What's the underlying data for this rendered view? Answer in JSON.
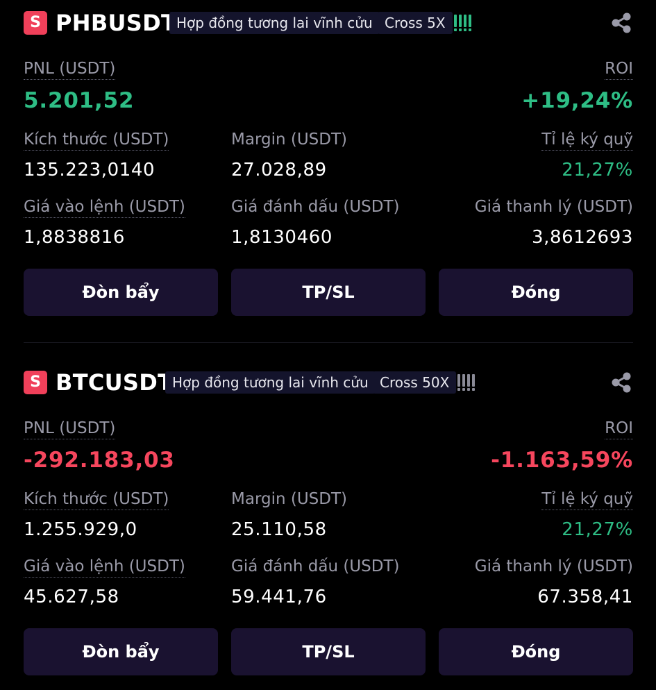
{
  "positions": [
    {
      "badge": "S",
      "symbol": "PHBUSDT",
      "contract_type": "Hợp đồng tương lai vĩnh cửu",
      "margin_mode": "Cross 5X",
      "pnl_label": "PNL (USDT)",
      "pnl_value": "5.201,52",
      "roi_label": "ROI",
      "roi_value": "+19,24%",
      "size_label": "Kích thước (USDT)",
      "size_value": "135.223,0140",
      "margin_label": "Margin (USDT)",
      "margin_value": "27.028,89",
      "margin_ratio_label": "Tỉ lệ ký quỹ",
      "margin_ratio_value": "21,27%",
      "entry_label": "Giá vào lệnh (USDT)",
      "entry_value": "1,8838816",
      "mark_label": "Giá đánh dấu (USDT)",
      "mark_value": "1,8130460",
      "liq_label": "Giá thanh lý (USDT)",
      "liq_value": "3,8612693",
      "buttons": {
        "leverage": "Đòn bẩy",
        "tpsl": "TP/SL",
        "close": "Đóng"
      },
      "pnl_color": "#2ebd85"
    },
    {
      "badge": "S",
      "symbol": "BTCUSDT",
      "contract_type": "Hợp đồng tương lai vĩnh cửu",
      "margin_mode": "Cross 50X",
      "pnl_label": "PNL (USDT)",
      "pnl_value": "-292.183,03",
      "roi_label": "ROI",
      "roi_value": "-1.163,59%",
      "size_label": "Kích thước (USDT)",
      "size_value": "1.255.929,0",
      "margin_label": "Margin (USDT)",
      "margin_value": "25.110,58",
      "margin_ratio_label": "Tỉ lệ ký quỹ",
      "margin_ratio_value": "21,27%",
      "entry_label": "Giá vào lệnh (USDT)",
      "entry_value": "45.627,58",
      "mark_label": "Giá đánh dấu (USDT)",
      "mark_value": "59.441,76",
      "liq_label": "Giá thanh lý (USDT)",
      "liq_value": "67.358,41",
      "buttons": {
        "leverage": "Đòn bẩy",
        "tpsl": "TP/SL",
        "close": "Đóng"
      },
      "pnl_color": "#f6465d"
    }
  ],
  "icons": {
    "share": "share-icon",
    "risk": "risk-bars-icon"
  },
  "colors": {
    "positive": "#2ebd85",
    "negative": "#f6465d",
    "button_bg": "#1a1230",
    "background": "#000000"
  }
}
